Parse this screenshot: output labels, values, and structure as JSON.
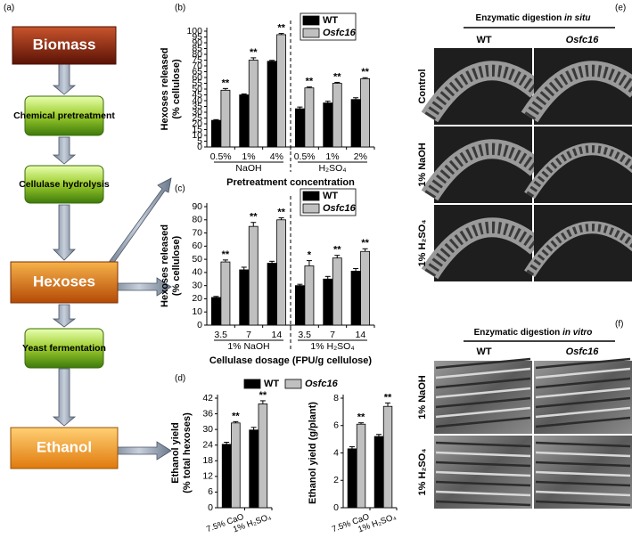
{
  "flowchart": {
    "label": "(a)",
    "nodes": [
      "Biomass",
      "Chemical pretreatment",
      "Cellulase hydrolysis",
      "Hexoses",
      "Yeast fermentation",
      "Ethanol"
    ]
  },
  "chart_data": [
    {
      "type": "bar",
      "label": "(b)",
      "ylabel": [
        "Hexoses released",
        "(% cellulose)"
      ],
      "xlabel": "Pretreatment concentration",
      "groups": [
        {
          "name": "NaOH",
          "categories": [
            "0.5%",
            "1%",
            "4%"
          ]
        },
        {
          "name": "H₂SO₄",
          "categories": [
            "0.5%",
            "1%",
            "2%"
          ]
        }
      ],
      "series": [
        {
          "name": "WT",
          "color": "#000000",
          "values": [
            23,
            45,
            74,
            33,
            38,
            41
          ],
          "errors": [
            0.6,
            0.8,
            0.8,
            1.5,
            1.5,
            1.5
          ]
        },
        {
          "name": "Osfc16",
          "color": "#c0c0c0",
          "values": [
            49,
            75,
            97,
            51,
            55,
            59
          ],
          "errors": [
            1.5,
            2,
            1,
            0.8,
            0.8,
            0.8
          ],
          "significance": [
            "**",
            "**",
            "**",
            "**",
            "**",
            "**"
          ]
        }
      ],
      "ylim": [
        0,
        100
      ],
      "yticks": [
        0,
        5,
        10,
        15,
        20,
        25,
        30,
        35,
        40,
        45,
        50,
        55,
        60,
        65,
        70,
        75,
        80,
        85,
        90,
        95,
        100
      ],
      "legend": "upper right"
    },
    {
      "type": "bar",
      "label": "(c)",
      "ylabel": [
        "Hexoses released",
        "(% cellulose)"
      ],
      "xlabel": "Cellulase dosage (FPU/g cellulose)",
      "groups": [
        {
          "name": "1% NaOH",
          "categories": [
            "3.5",
            "7",
            "14"
          ]
        },
        {
          "name": "1% H₂SO₄",
          "categories": [
            "3.5",
            "7",
            "14"
          ]
        }
      ],
      "series": [
        {
          "name": "WT",
          "color": "#000000",
          "values": [
            21,
            42,
            47,
            30,
            35,
            41
          ],
          "errors": [
            0.8,
            2,
            1.5,
            1,
            2,
            2
          ]
        },
        {
          "name": "Osfc16",
          "color": "#c0c0c0",
          "values": [
            48,
            75,
            80,
            45,
            51,
            56
          ],
          "errors": [
            1.5,
            3,
            1.5,
            4,
            2,
            2
          ],
          "significance": [
            "**",
            "**",
            "**",
            "*",
            "**",
            "**"
          ]
        }
      ],
      "ylim": [
        0,
        90
      ],
      "yticks": [
        0,
        10,
        20,
        30,
        40,
        50,
        60,
        70,
        80,
        90
      ],
      "legend": "upper right"
    },
    {
      "type": "bar",
      "label": "(d)",
      "ylabel": [
        "Ethanol yield",
        "(% total hexoses)"
      ],
      "categories": [
        "7.5% CaO",
        "1% H₂SO₄"
      ],
      "series": [
        {
          "name": "WT",
          "color": "#000000",
          "values": [
            24.3,
            29.8
          ],
          "errors": [
            0.8,
            1
          ]
        },
        {
          "name": "Osfc16",
          "color": "#c0c0c0",
          "values": [
            32.5,
            39.8
          ],
          "errors": [
            0.5,
            1.2
          ],
          "significance": [
            "**",
            "**"
          ]
        }
      ],
      "ylim": [
        0,
        42
      ],
      "yticks": [
        0,
        6,
        12,
        18,
        24,
        30,
        36,
        42
      ],
      "legend": "top"
    },
    {
      "type": "bar",
      "ylabel": [
        "Ethanol yield (g/plant)"
      ],
      "categories": [
        "7.5% CaO",
        "1% H₂SO₄"
      ],
      "series": [
        {
          "color": "#000000",
          "values": [
            4.3,
            5.2
          ],
          "errors": [
            0.15,
            0.15
          ]
        },
        {
          "color": "#c0c0c0",
          "values": [
            6.1,
            7.4
          ],
          "errors": [
            0.1,
            0.25
          ],
          "significance": [
            "**",
            "**"
          ]
        }
      ],
      "ylim": [
        0,
        8
      ],
      "yticks": [
        0,
        2,
        4,
        6,
        8
      ]
    }
  ],
  "panel_e": {
    "label": "(e)",
    "title": {
      "text": "Enzymatic digestion",
      "italic": "in situ"
    },
    "columns": [
      "WT",
      "Osfc16"
    ],
    "rows": [
      "Control",
      "1% NaOH",
      "1% H₂SO₄"
    ]
  },
  "panel_f": {
    "label": "(f)",
    "title": {
      "text": "Enzymatic digestion",
      "italic": "in vitro"
    },
    "columns": [
      "WT",
      "Osfc16"
    ],
    "rows": [
      "1% NaOH",
      "1% H₂SO₄"
    ]
  }
}
